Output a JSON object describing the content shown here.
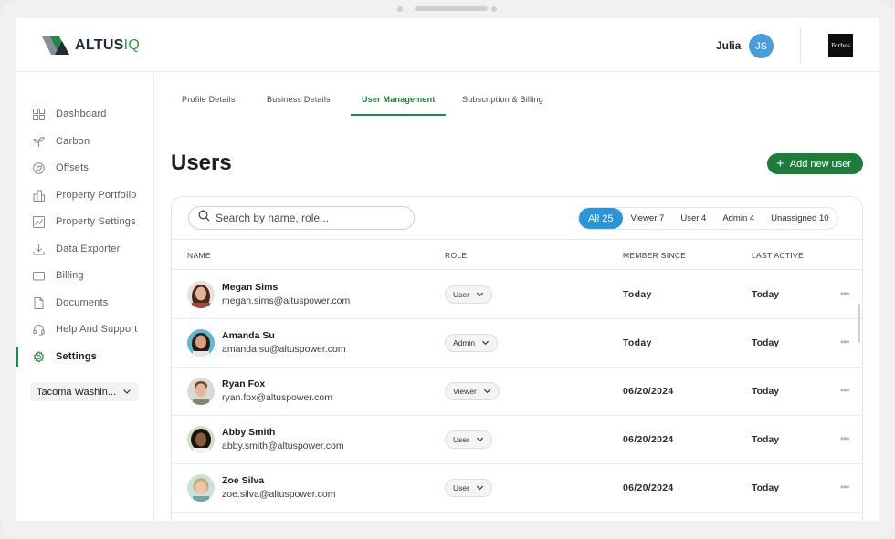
{
  "header": {
    "logo_text": "ALTUS",
    "logo_suffix": "IQ",
    "user_name": "Julia",
    "user_initials": "JS",
    "brand": "Forbes"
  },
  "sidebar": {
    "items": [
      {
        "label": "Dashboard",
        "icon": "grid-icon"
      },
      {
        "label": "Carbon",
        "icon": "leaf-icon"
      },
      {
        "label": "Offsets",
        "icon": "offset-icon"
      },
      {
        "label": "Property Portfolio",
        "icon": "building-icon"
      },
      {
        "label": "Property Settings",
        "icon": "chart-icon"
      },
      {
        "label": "Data Exporter",
        "icon": "download-icon"
      },
      {
        "label": "Billing",
        "icon": "card-icon"
      },
      {
        "label": "Documents",
        "icon": "document-icon"
      },
      {
        "label": "Help And Support",
        "icon": "headset-icon"
      },
      {
        "label": "Settings",
        "icon": "gear-icon",
        "active": true
      }
    ],
    "location_select": "Tacoma Washin..."
  },
  "tabs": [
    "Profile Details",
    "Business Details",
    "User Management",
    "Subscription & Billing"
  ],
  "active_tab": "User Management",
  "page": {
    "title": "Users",
    "add_button": "Add new user"
  },
  "search": {
    "placeholder": "Search by name, role..."
  },
  "filters": [
    {
      "label": "All 25",
      "active": true
    },
    {
      "label": "Viewer 7"
    },
    {
      "label": "User 4"
    },
    {
      "label": "Admin 4"
    },
    {
      "label": "Unassigned 10"
    }
  ],
  "table": {
    "headers": [
      "NAME",
      "ROLE",
      "MEMBER SINCE",
      "LAST ACTIVE"
    ],
    "rows": [
      {
        "name": "Megan Sims",
        "email": "megan.sims@altuspower.com",
        "role": "User",
        "member_since": "Today",
        "last_active": "Today"
      },
      {
        "name": "Amanda Su",
        "email": "amanda.su@altuspower.com",
        "role": "Admin",
        "member_since": "Today",
        "last_active": "Today"
      },
      {
        "name": "Ryan Fox",
        "email": "ryan.fox@altuspower.com",
        "role": "Viewer",
        "member_since": "06/20/2024",
        "last_active": "Today"
      },
      {
        "name": "Abby Smith",
        "email": "abby.smith@altuspower.com",
        "role": "User",
        "member_since": "06/20/2024",
        "last_active": "Today"
      },
      {
        "name": "Zoe Silva",
        "email": "zoe.silva@altuspower.com",
        "role": "User",
        "member_since": "06/20/2024",
        "last_active": "Today"
      }
    ]
  },
  "colors": {
    "accent_green": "#1e7c3b",
    "filter_active": "#2a95d8",
    "avatar_blue": "#4a9ddb"
  }
}
